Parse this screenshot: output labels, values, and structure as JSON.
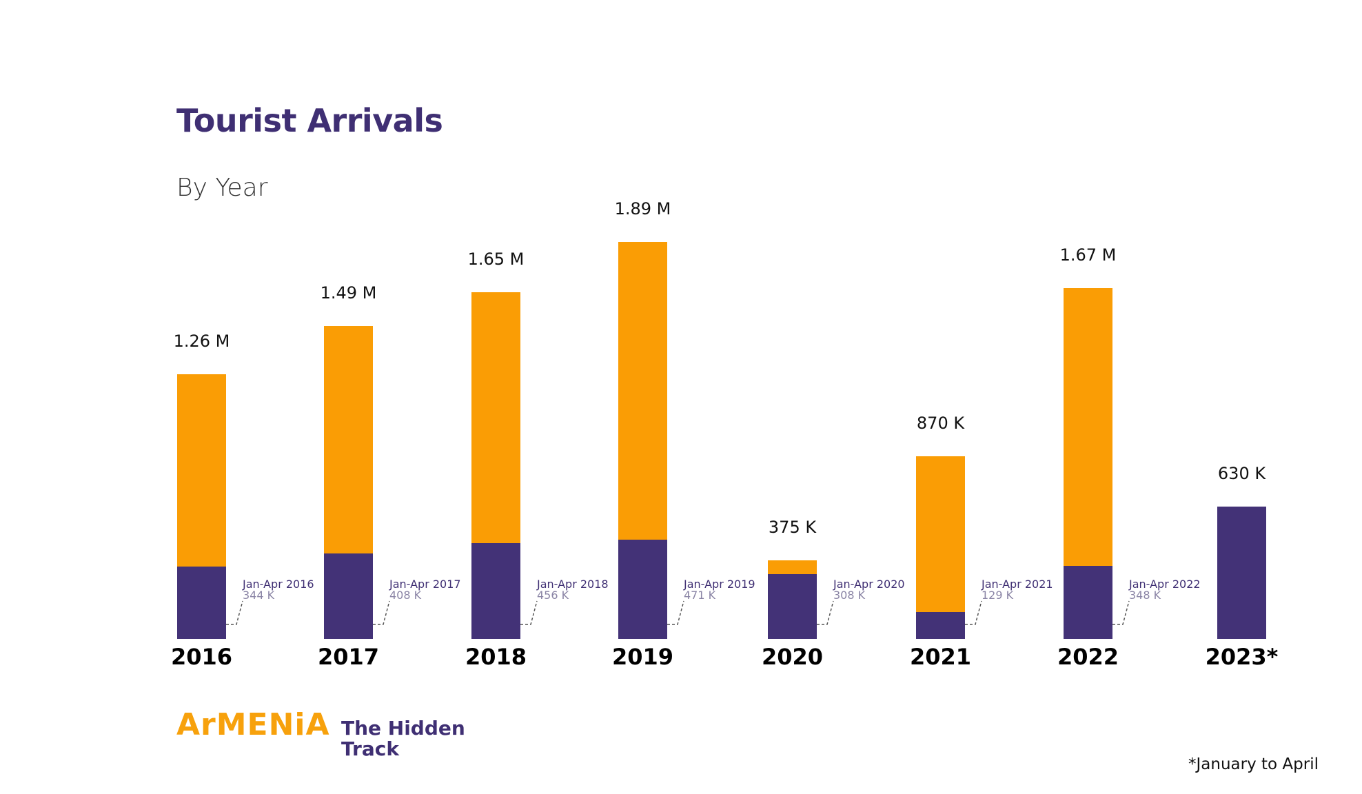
{
  "chart_data": {
    "type": "bar",
    "stacked": true,
    "title": "Tourist Arrivals",
    "subtitle": "By Year",
    "categories": [
      "2016",
      "2017",
      "2018",
      "2019",
      "2020",
      "2021",
      "2022",
      "2023*"
    ],
    "totals": [
      1.26,
      1.49,
      1.65,
      1.89,
      0.375,
      0.87,
      1.67,
      0.63
    ],
    "total_labels": [
      "1.26 M",
      "1.49 M",
      "1.65 M",
      "1.89 M",
      "375 K",
      "870 K",
      "1.67 M",
      "630 K"
    ],
    "series": [
      {
        "values": [
          0.344,
          0.408,
          0.456,
          0.471,
          0.308,
          0.129,
          0.348,
          0.63
        ]
      }
    ],
    "annotations": [
      {
        "label": "Jan-Apr 2016",
        "value": "344 K"
      },
      {
        "label": "Jan-Apr 2017",
        "value": "408 K"
      },
      {
        "label": "Jan-Apr 2018",
        "value": "456 K"
      },
      {
        "label": "Jan-Apr 2019",
        "value": "471 K"
      },
      {
        "label": "Jan-Apr 2020",
        "value": "308 K"
      },
      {
        "label": "Jan-Apr 2021",
        "value": "129 K"
      },
      {
        "label": "Jan-Apr 2022",
        "value": "348 K"
      }
    ],
    "unit": "millions",
    "ylim": [
      0,
      2
    ],
    "grid": false,
    "colors": {
      "full_year": "#fa9d05",
      "jan_apr": "#433277"
    }
  },
  "footnote": "*January to April",
  "logo": {
    "brand": "ArMENiA",
    "tagline_1": "The Hidden",
    "tagline_2": "Track"
  }
}
